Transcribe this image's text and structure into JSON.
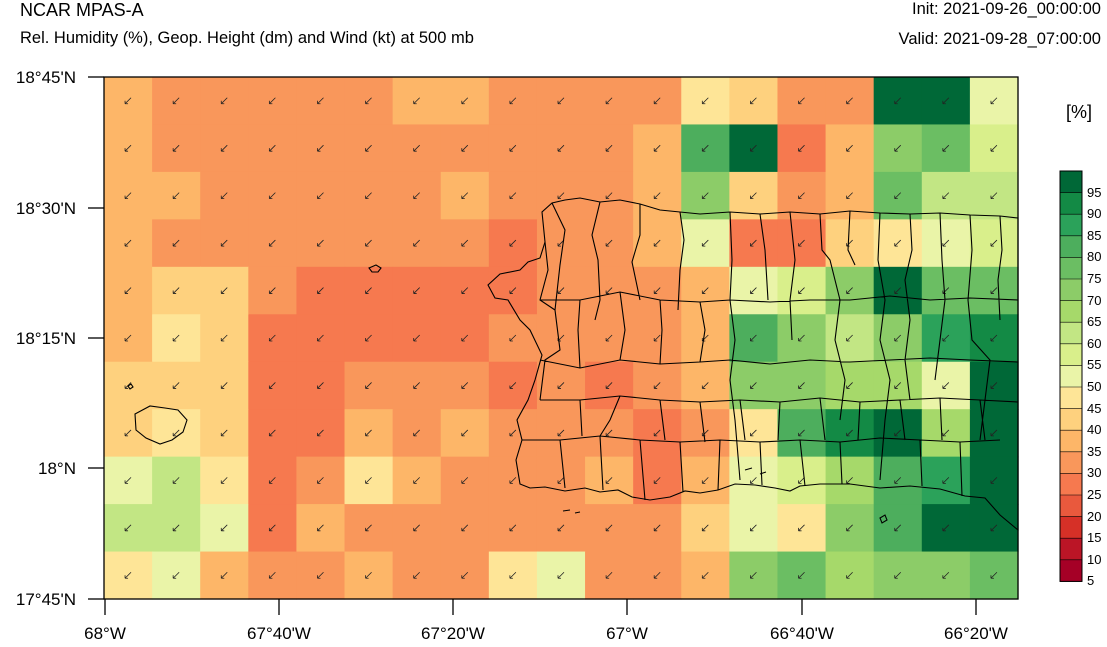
{
  "header": {
    "title": "NCAR MPAS-A",
    "subtitle": "Rel. Humidity (%), Geop. Height (dm) and Wind (kt) at 500 mb",
    "init": "Init: 2021-09-26_00:00:00",
    "valid": "Valid: 2021-09-28_07:00:00"
  },
  "axes": {
    "lat_labels": [
      "18°45'N",
      "18°30'N",
      "18°15'N",
      "18°N",
      "17°45'N"
    ],
    "lon_labels": [
      "68°W",
      "67°40'W",
      "67°20'W",
      "67°W",
      "66°40'W",
      "66°20'W"
    ]
  },
  "colorbar": {
    "unit": "[%]",
    "labels": [
      "95",
      "90",
      "85",
      "80",
      "75",
      "70",
      "65",
      "60",
      "55",
      "50",
      "45",
      "40",
      "35",
      "30",
      "25",
      "20",
      "15",
      "10",
      "5"
    ],
    "colors": [
      "#006837",
      "#138a45",
      "#2ba25a",
      "#4dae5d",
      "#6bbe63",
      "#8ccc68",
      "#a6d96a",
      "#c2e684",
      "#d9ef8b",
      "#eaf4a8",
      "#fee597",
      "#fed17e",
      "#fdb668",
      "#f9975b",
      "#f6794f",
      "#e9593d",
      "#d63027",
      "#bb1526",
      "#a50026"
    ],
    "bottom_color": "#a50026"
  },
  "map": {
    "legend_ref": "rh_grid",
    "rh_grid": [
      [
        35,
        30,
        30,
        30,
        30,
        30,
        35,
        35,
        30,
        30,
        30,
        30,
        45,
        40,
        30,
        30,
        95,
        95,
        50
      ],
      [
        35,
        30,
        30,
        30,
        30,
        30,
        30,
        30,
        30,
        30,
        30,
        35,
        80,
        95,
        25,
        35,
        70,
        75,
        55
      ],
      [
        35,
        35,
        30,
        30,
        30,
        30,
        30,
        35,
        30,
        30,
        30,
        35,
        70,
        40,
        30,
        35,
        75,
        60,
        60
      ],
      [
        35,
        30,
        30,
        30,
        30,
        30,
        30,
        30,
        25,
        30,
        30,
        35,
        50,
        25,
        25,
        40,
        45,
        50,
        55
      ],
      [
        35,
        40,
        40,
        30,
        25,
        25,
        25,
        25,
        25,
        30,
        30,
        30,
        35,
        50,
        55,
        70,
        95,
        75,
        75
      ],
      [
        35,
        45,
        40,
        25,
        25,
        25,
        25,
        25,
        30,
        30,
        30,
        30,
        35,
        80,
        70,
        60,
        70,
        85,
        90
      ],
      [
        40,
        40,
        40,
        25,
        25,
        30,
        30,
        30,
        25,
        30,
        25,
        30,
        35,
        70,
        70,
        65,
        65,
        50,
        95
      ],
      [
        40,
        45,
        40,
        25,
        25,
        35,
        30,
        35,
        30,
        30,
        30,
        25,
        30,
        45,
        80,
        90,
        95,
        65,
        95
      ],
      [
        50,
        60,
        45,
        25,
        30,
        45,
        35,
        30,
        30,
        30,
        35,
        25,
        35,
        50,
        55,
        65,
        80,
        85,
        95
      ],
      [
        60,
        60,
        50,
        25,
        35,
        30,
        30,
        30,
        30,
        30,
        30,
        30,
        40,
        50,
        45,
        70,
        80,
        95,
        95
      ],
      [
        45,
        50,
        35,
        30,
        30,
        35,
        30,
        30,
        45,
        50,
        30,
        30,
        35,
        70,
        75,
        65,
        70,
        70,
        75
      ]
    ],
    "wind_barb_direction": "southwest"
  }
}
